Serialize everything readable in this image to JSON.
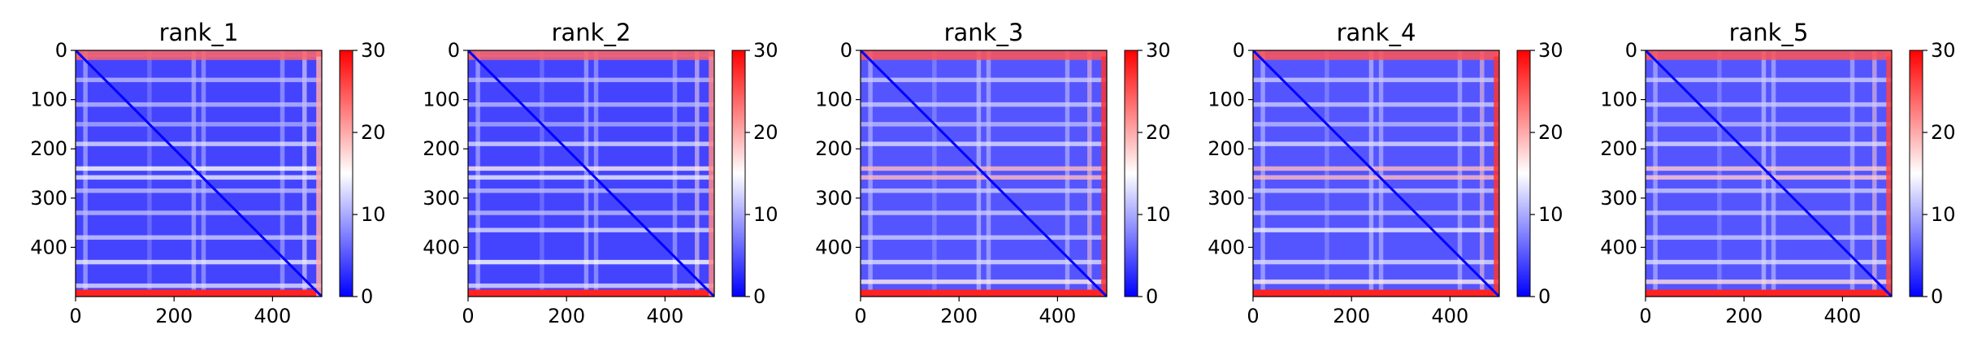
{
  "chart_data": [
    {
      "type": "heatmap",
      "title": "rank_1",
      "xlim": [
        0,
        500
      ],
      "ylim": [
        0,
        500
      ],
      "y_inverted": true,
      "x_ticks": [
        0,
        200,
        400
      ],
      "y_ticks": [
        0,
        100,
        200,
        300,
        400
      ],
      "colormap": "bwr",
      "color_range": [
        0,
        30
      ],
      "colorbar_ticks": [
        0,
        10,
        20,
        30
      ],
      "diagonal_value": 0,
      "background_value": 4,
      "row_bands": [
        {
          "index": 15,
          "value": 24
        },
        {
          "index": 60,
          "value": 11
        },
        {
          "index": 110,
          "value": 11
        },
        {
          "index": 150,
          "value": 10
        },
        {
          "index": 190,
          "value": 13
        },
        {
          "index": 240,
          "value": 15
        },
        {
          "index": 258,
          "value": 14
        },
        {
          "index": 285,
          "value": 11
        },
        {
          "index": 330,
          "value": 11
        },
        {
          "index": 380,
          "value": 12
        },
        {
          "index": 430,
          "value": 14
        },
        {
          "index": 478,
          "value": 13
        }
      ],
      "col_bands": [
        {
          "index": 20,
          "value": 12
        },
        {
          "index": 150,
          "value": 8
        },
        {
          "index": 240,
          "value": 12
        },
        {
          "index": 260,
          "value": 11
        },
        {
          "index": 420,
          "value": 11
        },
        {
          "index": 465,
          "value": 16
        }
      ],
      "bottom_edge_value": 28,
      "right_edge_value": 20
    },
    {
      "type": "heatmap",
      "title": "rank_2",
      "xlim": [
        0,
        500
      ],
      "ylim": [
        0,
        500
      ],
      "y_inverted": true,
      "x_ticks": [
        0,
        200,
        400
      ],
      "y_ticks": [
        0,
        100,
        200,
        300,
        400
      ],
      "colormap": "bwr",
      "color_range": [
        0,
        30
      ],
      "colorbar_ticks": [
        0,
        10,
        20,
        30
      ],
      "diagonal_value": 0,
      "background_value": 4,
      "row_bands": [
        {
          "index": 15,
          "value": 24
        },
        {
          "index": 60,
          "value": 11
        },
        {
          "index": 110,
          "value": 11
        },
        {
          "index": 150,
          "value": 10
        },
        {
          "index": 190,
          "value": 13
        },
        {
          "index": 240,
          "value": 16
        },
        {
          "index": 258,
          "value": 14
        },
        {
          "index": 285,
          "value": 11
        },
        {
          "index": 330,
          "value": 11
        },
        {
          "index": 365,
          "value": 13
        },
        {
          "index": 430,
          "value": 15
        },
        {
          "index": 478,
          "value": 13
        }
      ],
      "col_bands": [
        {
          "index": 20,
          "value": 12
        },
        {
          "index": 150,
          "value": 8
        },
        {
          "index": 240,
          "value": 12
        },
        {
          "index": 260,
          "value": 11
        },
        {
          "index": 420,
          "value": 11
        },
        {
          "index": 465,
          "value": 17
        }
      ],
      "bottom_edge_value": 28,
      "right_edge_value": 22
    },
    {
      "type": "heatmap",
      "title": "rank_3",
      "xlim": [
        0,
        500
      ],
      "ylim": [
        0,
        500
      ],
      "y_inverted": true,
      "x_ticks": [
        0,
        200,
        400
      ],
      "y_ticks": [
        0,
        100,
        200,
        300,
        400
      ],
      "colormap": "bwr",
      "color_range": [
        0,
        30
      ],
      "colorbar_ticks": [
        0,
        10,
        20,
        30
      ],
      "diagonal_value": 0,
      "background_value": 5,
      "row_bands": [
        {
          "index": 15,
          "value": 25
        },
        {
          "index": 60,
          "value": 12
        },
        {
          "index": 110,
          "value": 12
        },
        {
          "index": 150,
          "value": 11
        },
        {
          "index": 190,
          "value": 13
        },
        {
          "index": 240,
          "value": 19
        },
        {
          "index": 258,
          "value": 19
        },
        {
          "index": 285,
          "value": 12
        },
        {
          "index": 330,
          "value": 12
        },
        {
          "index": 380,
          "value": 12
        },
        {
          "index": 430,
          "value": 13
        },
        {
          "index": 470,
          "value": 16
        }
      ],
      "col_bands": [
        {
          "index": 20,
          "value": 12
        },
        {
          "index": 150,
          "value": 9
        },
        {
          "index": 240,
          "value": 13
        },
        {
          "index": 260,
          "value": 12
        },
        {
          "index": 420,
          "value": 12
        },
        {
          "index": 465,
          "value": 18
        }
      ],
      "bottom_edge_value": 28,
      "right_edge_value": 27
    },
    {
      "type": "heatmap",
      "title": "rank_4",
      "xlim": [
        0,
        500
      ],
      "ylim": [
        0,
        500
      ],
      "y_inverted": true,
      "x_ticks": [
        0,
        200,
        400
      ],
      "y_ticks": [
        0,
        100,
        200,
        300,
        400
      ],
      "colormap": "bwr",
      "color_range": [
        0,
        30
      ],
      "colorbar_ticks": [
        0,
        10,
        20,
        30
      ],
      "diagonal_value": 0,
      "background_value": 5,
      "row_bands": [
        {
          "index": 15,
          "value": 25
        },
        {
          "index": 60,
          "value": 12
        },
        {
          "index": 110,
          "value": 12
        },
        {
          "index": 150,
          "value": 11
        },
        {
          "index": 190,
          "value": 13
        },
        {
          "index": 240,
          "value": 19
        },
        {
          "index": 258,
          "value": 19
        },
        {
          "index": 285,
          "value": 12
        },
        {
          "index": 330,
          "value": 12
        },
        {
          "index": 365,
          "value": 14
        },
        {
          "index": 430,
          "value": 13
        },
        {
          "index": 470,
          "value": 16
        }
      ],
      "col_bands": [
        {
          "index": 20,
          "value": 12
        },
        {
          "index": 150,
          "value": 9
        },
        {
          "index": 240,
          "value": 13
        },
        {
          "index": 260,
          "value": 12
        },
        {
          "index": 420,
          "value": 12
        },
        {
          "index": 465,
          "value": 18
        }
      ],
      "bottom_edge_value": 28,
      "right_edge_value": 27
    },
    {
      "type": "heatmap",
      "title": "rank_5",
      "xlim": [
        0,
        500
      ],
      "ylim": [
        0,
        500
      ],
      "y_inverted": true,
      "x_ticks": [
        0,
        200,
        400
      ],
      "y_ticks": [
        0,
        100,
        200,
        300,
        400
      ],
      "colormap": "bwr",
      "color_range": [
        0,
        30
      ],
      "colorbar_ticks": [
        0,
        10,
        20,
        30
      ],
      "diagonal_value": 0,
      "background_value": 5,
      "row_bands": [
        {
          "index": 15,
          "value": 25
        },
        {
          "index": 60,
          "value": 12
        },
        {
          "index": 110,
          "value": 12
        },
        {
          "index": 150,
          "value": 11
        },
        {
          "index": 190,
          "value": 13
        },
        {
          "index": 240,
          "value": 18
        },
        {
          "index": 258,
          "value": 18
        },
        {
          "index": 285,
          "value": 12
        },
        {
          "index": 330,
          "value": 12
        },
        {
          "index": 380,
          "value": 12
        },
        {
          "index": 430,
          "value": 13
        },
        {
          "index": 470,
          "value": 17
        }
      ],
      "col_bands": [
        {
          "index": 20,
          "value": 12
        },
        {
          "index": 150,
          "value": 9
        },
        {
          "index": 240,
          "value": 13
        },
        {
          "index": 260,
          "value": 12
        },
        {
          "index": 420,
          "value": 12
        },
        {
          "index": 465,
          "value": 18
        }
      ],
      "bottom_edge_value": 28,
      "right_edge_value": 26
    }
  ]
}
